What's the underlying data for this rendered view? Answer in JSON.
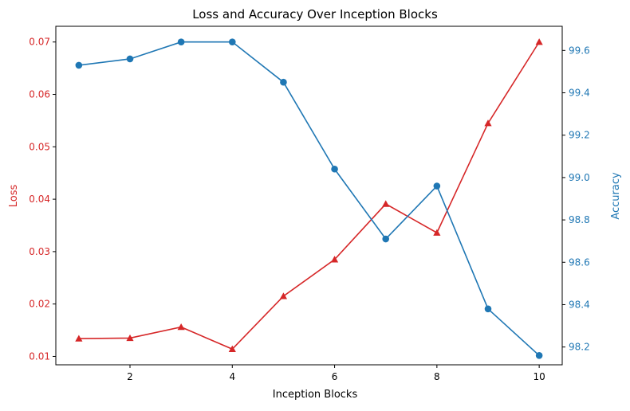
{
  "chart_data": {
    "type": "line",
    "title": "Loss and Accuracy Over Inception Blocks",
    "xlabel": "Inception Blocks",
    "x": [
      1,
      2,
      3,
      4,
      5,
      6,
      7,
      8,
      9,
      10
    ],
    "xlim": [
      0.55,
      10.45
    ],
    "x_ticks": [
      2,
      4,
      6,
      8,
      10
    ],
    "y_left": {
      "label": "Loss",
      "color": "#d62728",
      "lim": [
        0.0084,
        0.073
      ],
      "ticks": [
        "0.01",
        "0.02",
        "0.03",
        "0.04",
        "0.05",
        "0.06",
        "0.07"
      ]
    },
    "y_right": {
      "label": "Accuracy",
      "color": "#1f77b4",
      "lim": [
        98.116,
        99.714
      ],
      "ticks": [
        "98.2",
        "98.4",
        "98.6",
        "98.8",
        "99.0",
        "99.2",
        "99.4",
        "99.6"
      ]
    },
    "series": [
      {
        "axis": "left",
        "color": "#d62728",
        "marker": "triangle",
        "values": [
          0.0134,
          0.0135,
          0.0156,
          0.0114,
          0.0215,
          0.0285,
          0.0391,
          0.0336,
          0.0545,
          0.07
        ]
      },
      {
        "axis": "right",
        "color": "#1f77b4",
        "marker": "circle",
        "values": [
          99.53,
          99.56,
          99.64,
          99.64,
          99.45,
          99.04,
          98.71,
          98.96,
          98.38,
          98.16
        ]
      }
    ],
    "grid": false,
    "legend": "none"
  }
}
